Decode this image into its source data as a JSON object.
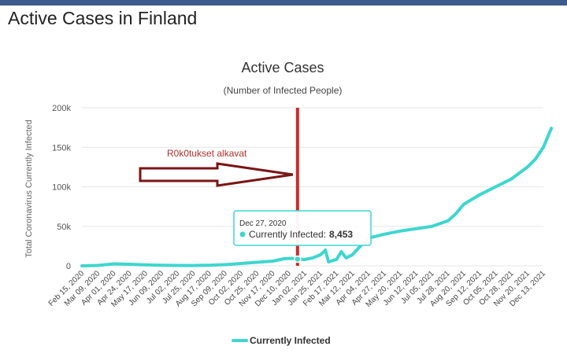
{
  "page": {
    "title": "Active Cases in Finland"
  },
  "colors": {
    "series": "#3ed6cf",
    "marker_line": "#cc2a2a",
    "arrow": "#7a1414",
    "tooltip_border": "#3ed6cf",
    "grid": "#e6e6e6"
  },
  "chart_data": {
    "type": "line",
    "title": "Active Cases",
    "subtitle": "(Number of Infected People)",
    "ylabel": "Total Coronavirus Currently Infected",
    "xlabel": "",
    "ylim": [
      0,
      200000
    ],
    "yticks": [
      {
        "value": 0,
        "label": "0"
      },
      {
        "value": 50000,
        "label": "50k"
      },
      {
        "value": 100000,
        "label": "100k"
      },
      {
        "value": 150000,
        "label": "150k"
      },
      {
        "value": 200000,
        "label": "200k"
      }
    ],
    "categories": [
      "Feb 15, 2020",
      "Mar 09, 2020",
      "Apr 01, 2020",
      "Apr 24, 2020",
      "May 17, 2020",
      "Jun 09, 2020",
      "Jul 02, 2020",
      "Jul 25, 2020",
      "Aug 17, 2020",
      "Sep 09, 2020",
      "Oct 02, 2020",
      "Oct 25, 2020",
      "Nov 17, 2020",
      "Dec 10, 2020",
      "Jan 02, 2021",
      "Jan 25, 2021",
      "Feb 17, 2021",
      "Mar 12, 2021",
      "Apr 04, 2021",
      "Apr 27, 2021",
      "May 20, 2021",
      "Jun 12, 2021",
      "Jul 05, 2021",
      "Jul 28, 2021",
      "Aug 20, 2021",
      "Sep 12, 2021",
      "Oct 05, 2021",
      "Oct 28, 2021",
      "Nov 20, 2021",
      "Dec 13, 2021"
    ],
    "series": [
      {
        "name": "Currently Infected",
        "points": [
          [
            0,
            0
          ],
          [
            1,
            500
          ],
          [
            2,
            2500
          ],
          [
            3,
            2000
          ],
          [
            4,
            1200
          ],
          [
            5,
            800
          ],
          [
            6,
            500
          ],
          [
            7,
            400
          ],
          [
            8,
            800
          ],
          [
            9,
            1500
          ],
          [
            10,
            3000
          ],
          [
            11,
            4500
          ],
          [
            12,
            6000
          ],
          [
            12.7,
            9000
          ],
          [
            13.2,
            9500
          ],
          [
            13.55,
            8453
          ],
          [
            14,
            8000
          ],
          [
            14.5,
            10000
          ],
          [
            15,
            14000
          ],
          [
            15.3,
            20000
          ],
          [
            15.5,
            5000
          ],
          [
            15.8,
            7000
          ],
          [
            16,
            8000
          ],
          [
            16.3,
            18000
          ],
          [
            16.6,
            10000
          ],
          [
            17,
            14000
          ],
          [
            17.5,
            25000
          ],
          [
            18,
            35000
          ],
          [
            19,
            40000
          ],
          [
            20,
            44000
          ],
          [
            21,
            47000
          ],
          [
            22,
            50000
          ],
          [
            23,
            57000
          ],
          [
            23.5,
            66000
          ],
          [
            24,
            78000
          ],
          [
            25,
            90000
          ],
          [
            26,
            100000
          ],
          [
            27,
            110000
          ],
          [
            28,
            125000
          ],
          [
            28.5,
            135000
          ],
          [
            29,
            150000
          ],
          [
            29.5,
            174000
          ]
        ]
      }
    ],
    "legend": {
      "position": "bottom-center",
      "label": "Currently Infected"
    },
    "annotations": {
      "arrow_text": "R0k0tukset alkavat",
      "marker_date": "Dec 27, 2020",
      "marker_x": 13.55
    },
    "tooltip": {
      "date": "Dec 27, 2020",
      "label": "Currently Infected:",
      "value": "8,453",
      "x": 13.55,
      "y": 8453
    }
  }
}
